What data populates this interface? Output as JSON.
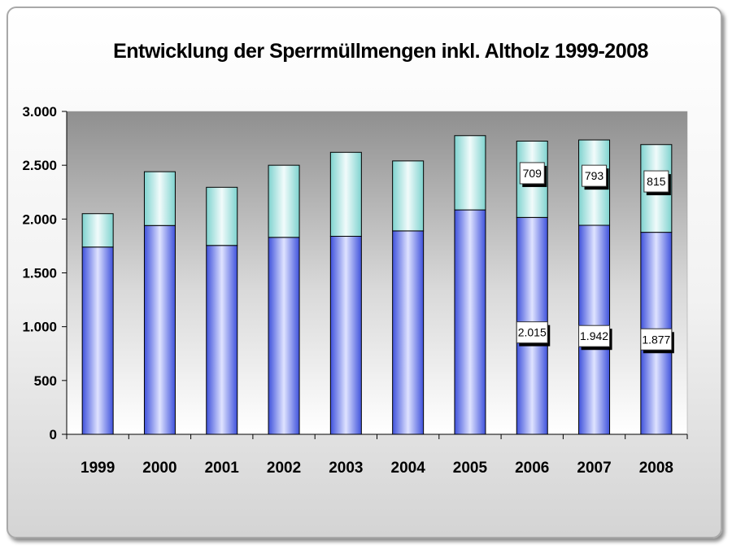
{
  "chart_data": {
    "type": "bar",
    "stacked": true,
    "title": "Entwicklung der Sperrmüllmengen inkl. Altholz 1999-2008",
    "xlabel": "",
    "ylabel": "",
    "categories": [
      "1999",
      "2000",
      "2001",
      "2002",
      "2003",
      "2004",
      "2005",
      "2006",
      "2007",
      "2008"
    ],
    "series": [
      {
        "values": [
          1740,
          1940,
          1755,
          1830,
          1840,
          1890,
          2085,
          2015,
          1942,
          1877
        ],
        "labels": [
          null,
          null,
          null,
          null,
          null,
          null,
          null,
          "2.015",
          "1.942",
          "1.877"
        ],
        "color": "#5b6fe8"
      },
      {
        "values": [
          310,
          500,
          540,
          670,
          780,
          650,
          690,
          709,
          793,
          815
        ],
        "labels": [
          null,
          null,
          null,
          null,
          null,
          null,
          null,
          "709",
          "793",
          "815"
        ],
        "color": "#8edbd6"
      }
    ],
    "ylim": [
      0,
      3000
    ],
    "yticks": [
      0,
      500,
      1000,
      1500,
      2000,
      2500,
      3000
    ],
    "ytick_labels": [
      "0",
      "500",
      "1.000",
      "1.500",
      "2.000",
      "2.500",
      "3.000"
    ],
    "grid": false,
    "legend": "none"
  }
}
